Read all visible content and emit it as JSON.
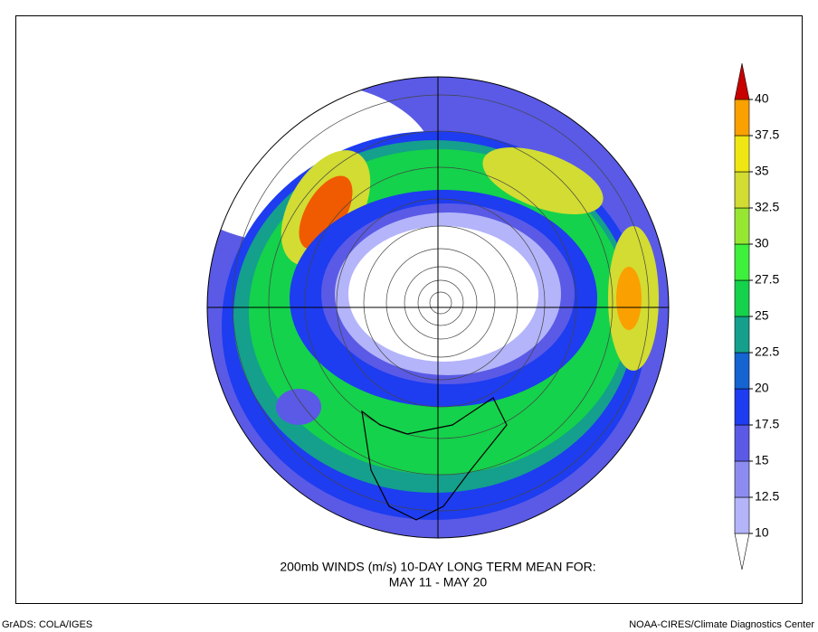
{
  "map": {
    "title": [
      "200mb WINDS (m/s)   10-DAY LONG TERM MEAN FOR:",
      "MAY 11 - MAY 20"
    ],
    "colorbar": {
      "levels": [
        10,
        12.5,
        15,
        17.5,
        20,
        22.5,
        25,
        27.5,
        30,
        32.5,
        35,
        37.5,
        40
      ],
      "colors": [
        "#ffffff",
        "#b4b4fa",
        "#8c8cf0",
        "#5a5ae6",
        "#1e3cf0",
        "#1464d2",
        "#14a08c",
        "#14d24b",
        "#3cf03c",
        "#96e632",
        "#d2dc32",
        "#f0e614",
        "#faa000",
        "#f05a00",
        "#c80000"
      ]
    },
    "credits": {
      "left": "GrADS: COLA/IGES",
      "right": "NOAA-CIRES/Climate Diagnostics Center"
    }
  }
}
